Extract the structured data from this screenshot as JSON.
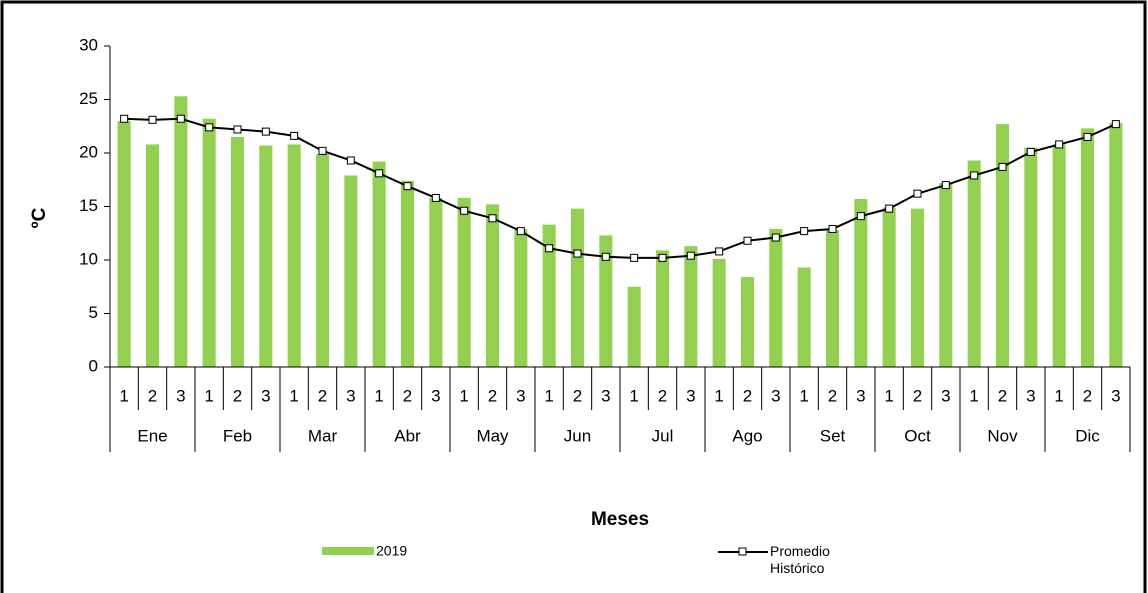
{
  "chart_data": {
    "type": "bar_line",
    "y_label": "ºC",
    "x_label": "Meses",
    "categories": [
      "1",
      "2",
      "3",
      "1",
      "2",
      "3",
      "1",
      "2",
      "3",
      "1",
      "2",
      "3",
      "1",
      "2",
      "3",
      "1",
      "2",
      "3",
      "1",
      "2",
      "3",
      "1",
      "2",
      "3",
      "1",
      "2",
      "3",
      "1",
      "2",
      "3",
      "1",
      "2",
      "3",
      "1",
      "2",
      "3"
    ],
    "groups": [
      "Ene",
      "Feb",
      "Mar",
      "Abr",
      "May",
      "Jun",
      "Jul",
      "Ago",
      "Set",
      "Oct",
      "Nov",
      "Dic"
    ],
    "series": [
      {
        "name": "2019",
        "type": "bar",
        "color": "#92d050",
        "values": [
          23.0,
          20.8,
          25.3,
          23.2,
          21.5,
          20.7,
          20.8,
          19.9,
          17.9,
          19.2,
          17.4,
          15.8,
          15.8,
          15.2,
          12.9,
          13.3,
          14.8,
          12.3,
          7.5,
          10.9,
          11.3,
          10.1,
          8.4,
          12.9,
          9.3,
          12.8,
          15.7,
          14.9,
          14.8,
          17.2,
          19.3,
          22.7,
          20.5,
          20.8,
          22.3,
          22.8
        ]
      },
      {
        "name": "Promedio Histórico",
        "type": "line",
        "color": "#000000",
        "values": [
          23.2,
          23.1,
          23.2,
          22.4,
          22.2,
          22.0,
          21.6,
          20.2,
          19.3,
          18.1,
          16.9,
          15.8,
          14.6,
          13.9,
          12.7,
          11.1,
          10.6,
          10.3,
          10.2,
          10.2,
          10.4,
          10.8,
          11.8,
          12.1,
          12.7,
          12.9,
          14.1,
          14.8,
          16.2,
          17.0,
          17.9,
          18.7,
          20.1,
          20.8,
          21.5,
          22.7
        ]
      }
    ],
    "ylim": [
      0,
      30
    ],
    "yticks": [
      0,
      5,
      10,
      15,
      20,
      25,
      30
    ]
  }
}
